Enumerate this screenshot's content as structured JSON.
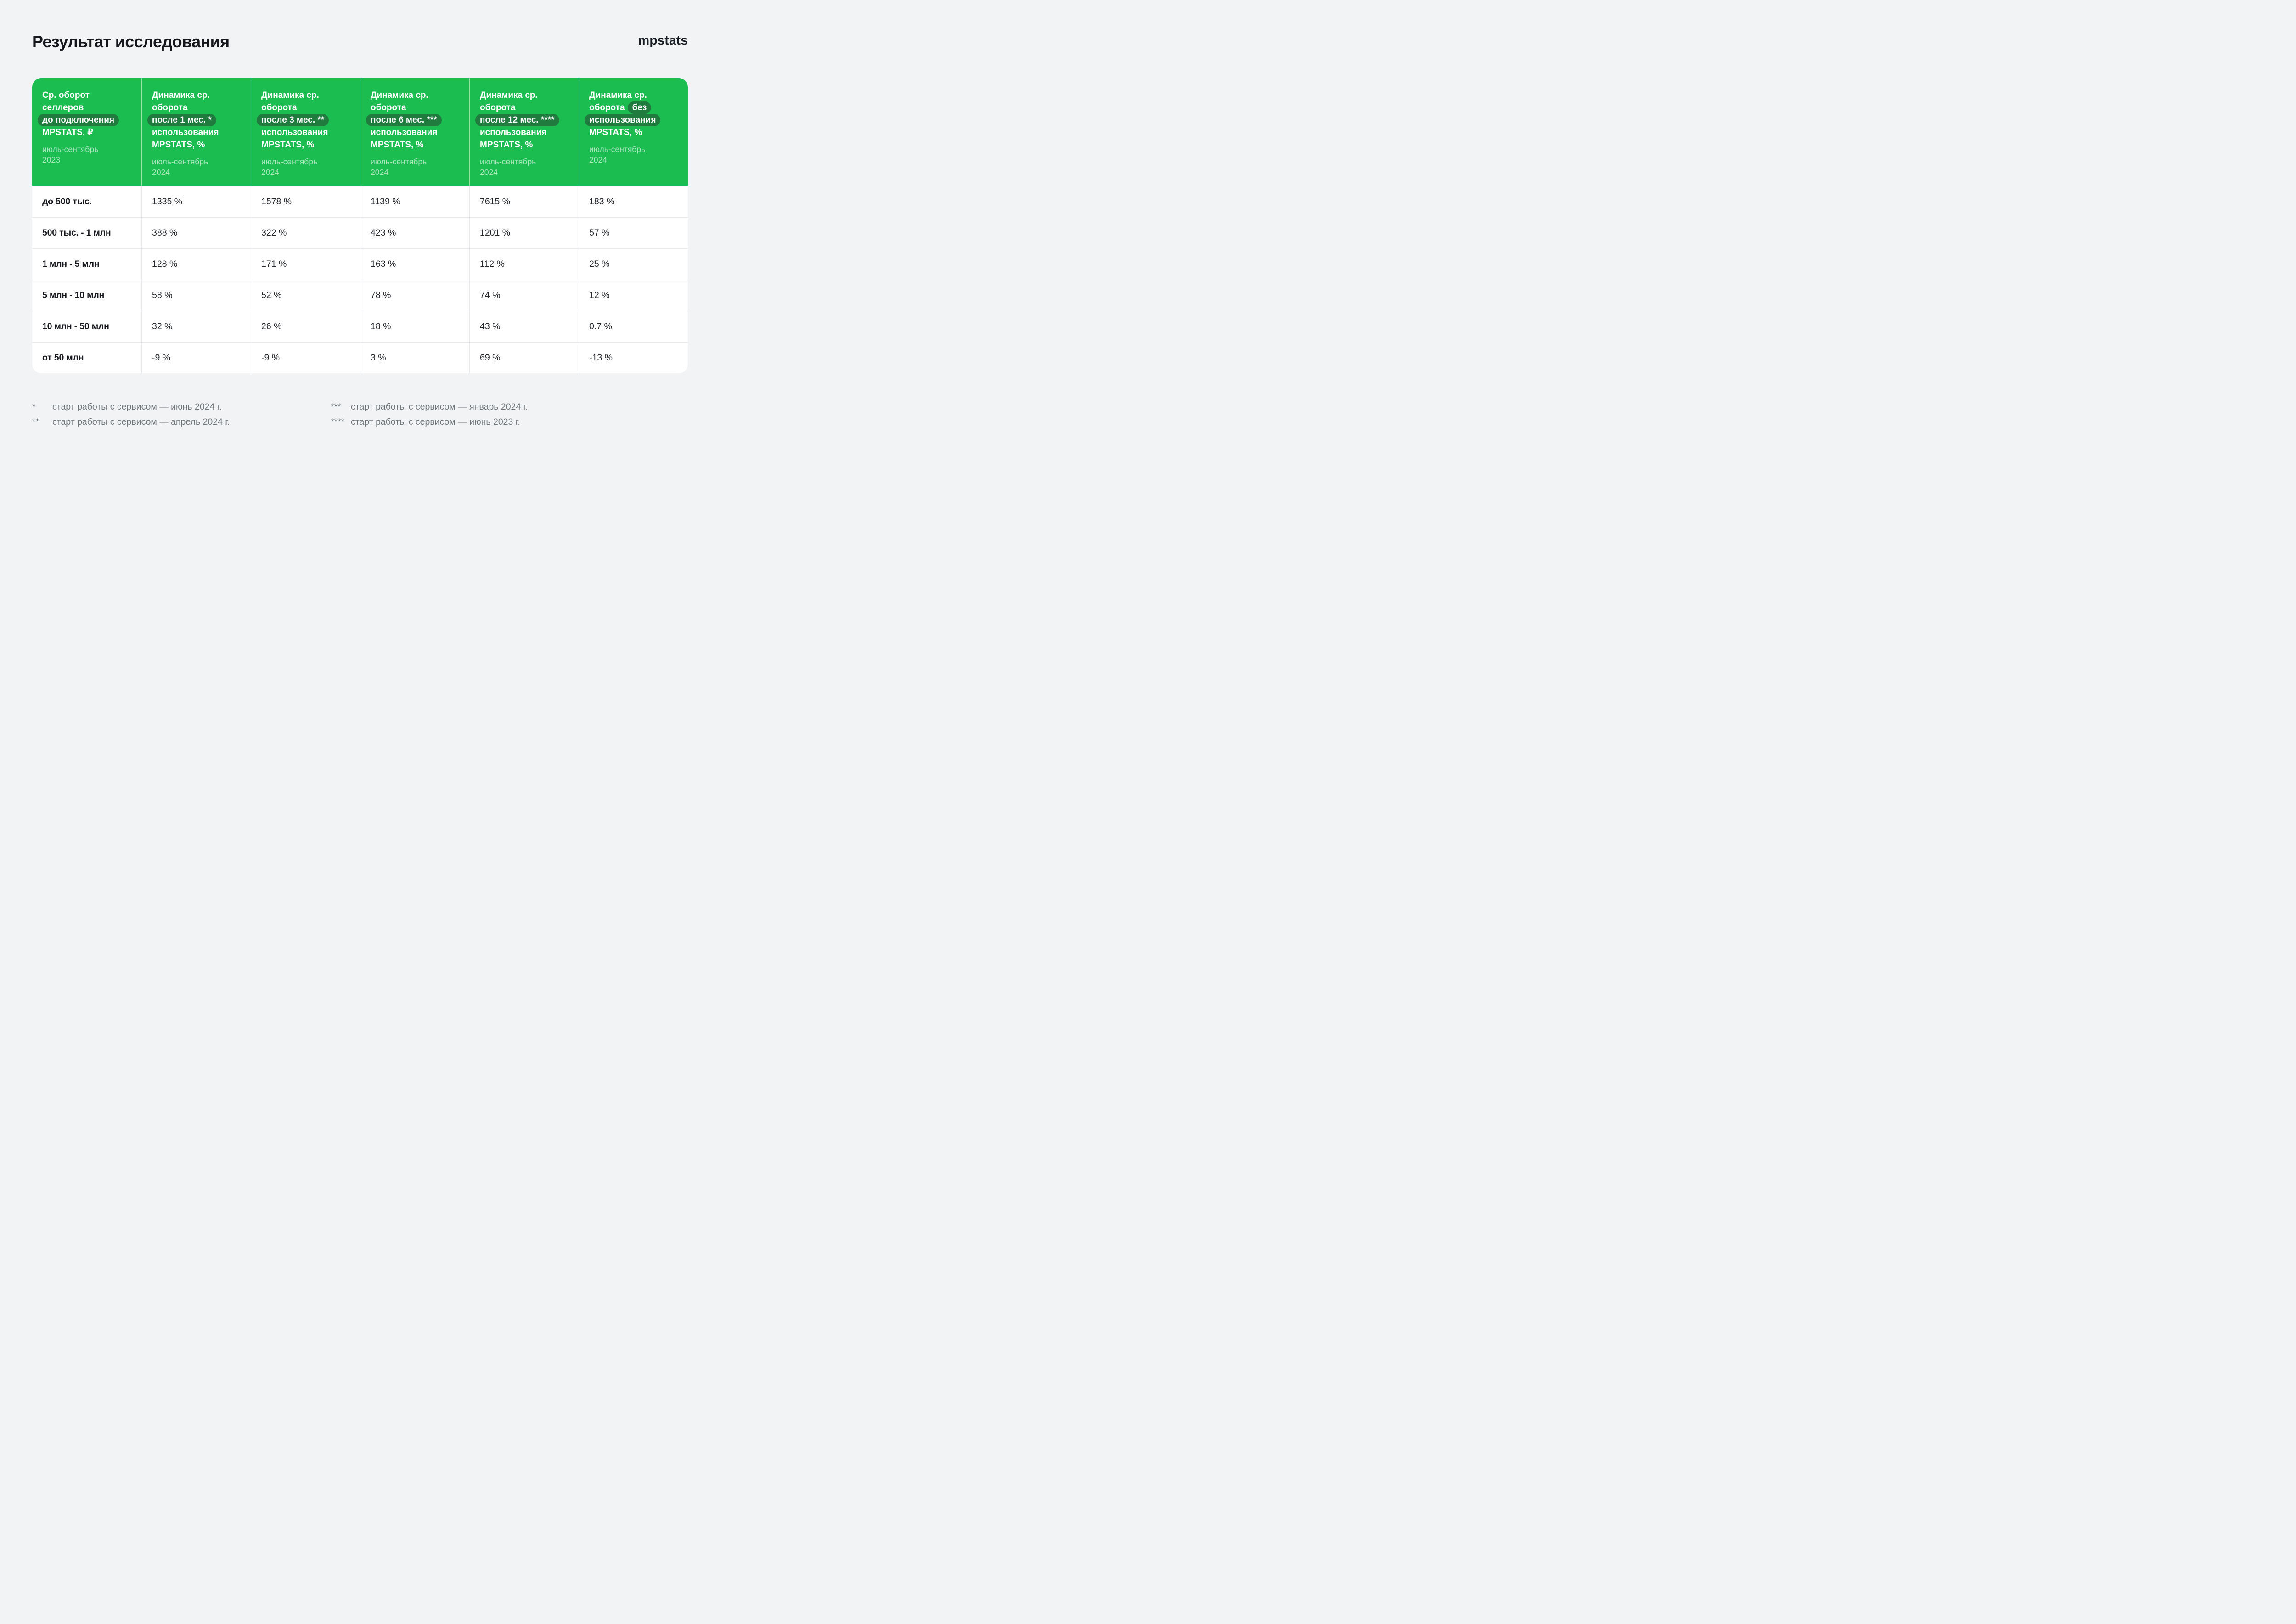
{
  "header": {
    "title": "Результат исследования",
    "logo": "mpstats"
  },
  "colors": {
    "page_bg": "#F2F3F5",
    "card_bg": "#FFFFFF",
    "header_green": "#1BBD51",
    "pill_dark_green": "#1F7B3E",
    "subtitle_light_green": "#A9E7BF",
    "text_dark": "#16181D",
    "footnote_gray": "#6F7479",
    "divider_gray": "#E8E9EC"
  },
  "table": {
    "columns": [
      {
        "l1": "Ср. оборот",
        "l2": "селлеров",
        "pill": "до подключения",
        "l3": "MPSTATS, ₽",
        "sub1": "июль-сентябрь",
        "sub2": "2023"
      },
      {
        "l1": "Динамика ср.",
        "l2": "оборота",
        "pill": "после 1 мес. *",
        "l3": "использования",
        "l4": "MPSTATS, %",
        "sub1": "июль-сентябрь",
        "sub2": "2024"
      },
      {
        "l1": "Динамика ср.",
        "l2": "оборота",
        "pill": "после 3 мес. **",
        "l3": "использования",
        "l4": "MPSTATS, %",
        "sub1": "июль-сентябрь",
        "sub2": "2024"
      },
      {
        "l1": "Динамика ср.",
        "l2": "оборота",
        "pill": "после 6 мес. ***",
        "l3": "использования",
        "l4": "MPSTATS, %",
        "sub1": "июль-сентябрь",
        "sub2": "2024"
      },
      {
        "l1": "Динамика ср.",
        "l2": "оборота",
        "pill": "после 12 мес. ****",
        "l3": "использования",
        "l4": "MPSTATS, %",
        "sub1": "июль-сентябрь",
        "sub2": "2024"
      },
      {
        "l1": "Динамика ср.",
        "l2": "оборота",
        "pill1": "без",
        "pill2": "использования",
        "l3": "MPSTATS, %",
        "sub1": "июль-сентябрь",
        "sub2": "2024"
      }
    ],
    "rows": [
      {
        "label": "до 500 тыс.",
        "v1": "1335 %",
        "v2": "1578 %",
        "v3": "1139 %",
        "v4": "7615 %",
        "v5": "183 %"
      },
      {
        "label": "500 тыс. - 1 млн",
        "v1": "388 %",
        "v2": "322 %",
        "v3": "423 %",
        "v4": "1201 %",
        "v5": "57 %"
      },
      {
        "label": "1 млн - 5 млн",
        "v1": "128 %",
        "v2": "171 %",
        "v3": "163 %",
        "v4": "112 %",
        "v5": "25 %"
      },
      {
        "label": "5 млн - 10 млн",
        "v1": "58 %",
        "v2": "52 %",
        "v3": "78 %",
        "v4": "74 %",
        "v5": "12 %"
      },
      {
        "label": "10 млн - 50 млн",
        "v1": "32 %",
        "v2": "26 %",
        "v3": "18 %",
        "v4": "43 %",
        "v5": "0.7 %"
      },
      {
        "label": "от 50 млн",
        "v1": "-9 %",
        "v2": "-9 %",
        "v3": "3 %",
        "v4": "69 %",
        "v5": "-13 %"
      }
    ]
  },
  "footnotes": [
    {
      "m": "*",
      "t": "старт работы с сервисом — июнь 2024 г."
    },
    {
      "m": "**",
      "t": "старт работы с сервисом — апрель 2024 г."
    },
    {
      "m": "***",
      "t": "старт работы с сервисом — январь 2024 г."
    },
    {
      "m": "****",
      "t": "старт работы с сервисом — июнь 2023 г."
    }
  ],
  "chart_data": {
    "type": "table",
    "title": "Результат исследования",
    "row_header": "Ср. оборот селлеров до подключения MPSTATS, ₽ (июль-сентябрь 2023)",
    "categories": [
      "до 500 тыс.",
      "500 тыс. - 1 млн",
      "1 млн - 5 млн",
      "5 млн - 10 млн",
      "10 млн - 50 млн",
      "от 50 млн"
    ],
    "series": [
      {
        "name": "Динамика ср. оборота после 1 мес. * использования MPSTATS, % (июль-сентябрь 2024)",
        "values": [
          1335,
          388,
          128,
          58,
          32,
          -9
        ]
      },
      {
        "name": "Динамика ср. оборота после 3 мес. ** использования MPSTATS, % (июль-сентябрь 2024)",
        "values": [
          1578,
          322,
          171,
          52,
          26,
          -9
        ]
      },
      {
        "name": "Динамика ср. оборота после 6 мес. *** использования MPSTATS, % (июль-сентябрь 2024)",
        "values": [
          1139,
          423,
          163,
          78,
          18,
          3
        ]
      },
      {
        "name": "Динамика ср. оборота после 12 мес. **** использования MPSTATS, % (июль-сентябрь 2024)",
        "values": [
          7615,
          1201,
          112,
          74,
          43,
          69
        ]
      },
      {
        "name": "Динамика ср. оборота без использования MPSTATS, % (июль-сентябрь 2024)",
        "values": [
          183,
          57,
          25,
          12,
          0.7,
          -13
        ]
      }
    ],
    "unit": "%"
  }
}
